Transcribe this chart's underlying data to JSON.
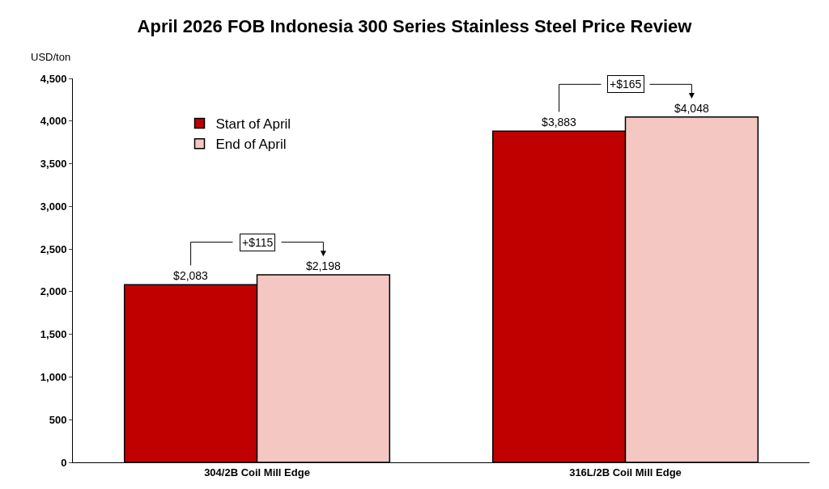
{
  "chart_data": {
    "type": "bar",
    "title": "April 2026 FOB Indonesia 300 Series Stainless Steel Price Review",
    "ylabel": "USD/ton",
    "categories": [
      "304/2B Coil Mill Edge",
      "316L/2B Coil Mill Edge"
    ],
    "series": [
      {
        "name": "Start of April",
        "color": "#c00000",
        "values": [
          2083,
          3883
        ],
        "value_labels": [
          "$2,083",
          "$3,883"
        ]
      },
      {
        "name": "End of April",
        "color": "#f4c7c3",
        "values": [
          2198,
          4048
        ],
        "value_labels": [
          "$2,198",
          "$4,048"
        ]
      }
    ],
    "annotations": [
      "+$115",
      "+$165"
    ],
    "ylim": [
      0,
      4500
    ],
    "yticks": [
      0,
      500,
      {
        "value": 1000,
        "label": "1,000"
      },
      {
        "value": 1500,
        "label": "1,500"
      },
      {
        "value": 2000,
        "label": "2,000"
      },
      {
        "value": 2500,
        "label": "2,500"
      },
      {
        "value": 3000,
        "label": "3,000"
      },
      {
        "value": 3500,
        "label": "3,500"
      },
      {
        "value": 4000,
        "label": "4,000"
      },
      {
        "value": 4500,
        "label": "4,500"
      }
    ],
    "grid": false,
    "legend": "top left"
  }
}
